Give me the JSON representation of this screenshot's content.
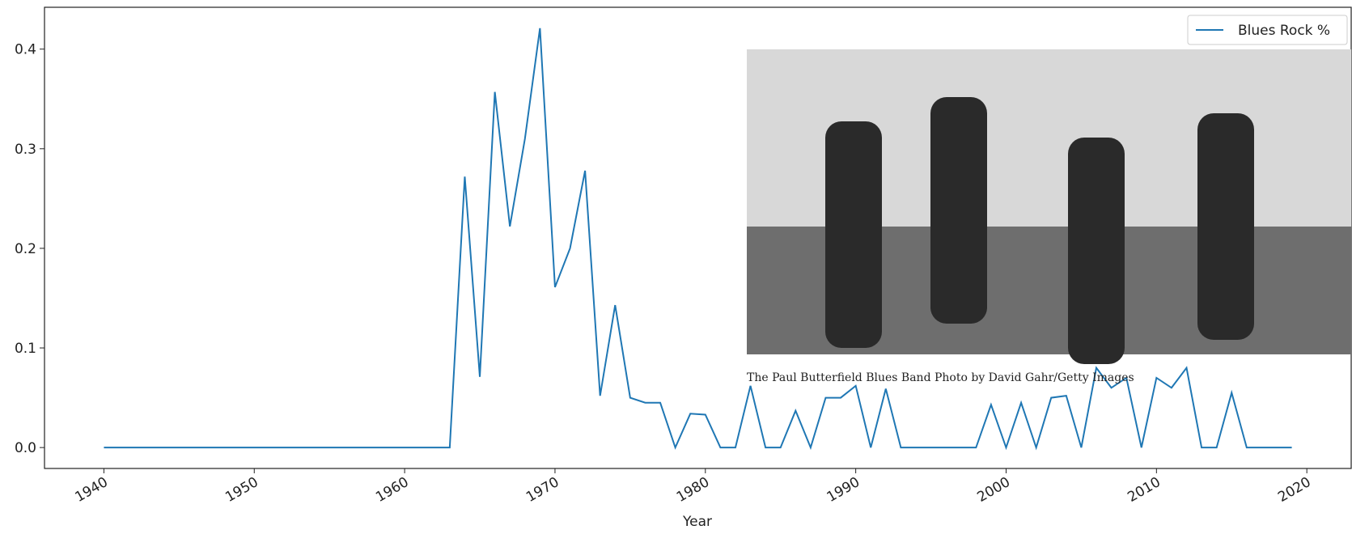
{
  "chart_data": {
    "type": "line",
    "xlabel": "Year",
    "x": [
      1940,
      1941,
      1942,
      1943,
      1944,
      1945,
      1946,
      1947,
      1948,
      1949,
      1950,
      1951,
      1952,
      1953,
      1954,
      1955,
      1956,
      1957,
      1958,
      1959,
      1960,
      1961,
      1962,
      1963,
      1964,
      1965,
      1966,
      1967,
      1968,
      1969,
      1970,
      1971,
      1972,
      1973,
      1974,
      1975,
      1976,
      1977,
      1978,
      1979,
      1980,
      1981,
      1982,
      1983,
      1984,
      1985,
      1986,
      1987,
      1988,
      1989,
      1990,
      1991,
      1992,
      1993,
      1994,
      1995,
      1996,
      1997,
      1998,
      1999,
      2000,
      2001,
      2002,
      2003,
      2004,
      2005,
      2006,
      2007,
      2008,
      2009,
      2010,
      2011,
      2012,
      2013,
      2014,
      2015,
      2016,
      2017,
      2018,
      2019
    ],
    "series": [
      {
        "name": "Blues Rock %",
        "color": "#1f77b4",
        "values": [
          0,
          0,
          0,
          0,
          0,
          0,
          0,
          0,
          0,
          0,
          0,
          0,
          0,
          0,
          0,
          0,
          0,
          0,
          0,
          0,
          0,
          0,
          0,
          0,
          0.272,
          0.071,
          0.357,
          0.222,
          0.31,
          0.421,
          0.161,
          0.2,
          0.278,
          0.052,
          0.143,
          0.05,
          0.045,
          0.045,
          0,
          0.034,
          0.033,
          0,
          0,
          0.062,
          0,
          0,
          0.037,
          0,
          0.05,
          0.05,
          0.062,
          0,
          0.059,
          0,
          0,
          0,
          0,
          0,
          0,
          0.043,
          0,
          0.045,
          0,
          0.05,
          0.052,
          0,
          0.08,
          0.06,
          0.07,
          0,
          0.07,
          0.06,
          0.08,
          0,
          0,
          0.055,
          0,
          0,
          0,
          0
        ]
      }
    ],
    "xlim": [
      1936.05,
      2022.95
    ],
    "xticks": [
      1940,
      1950,
      1960,
      1970,
      1980,
      1990,
      2000,
      2010,
      2020
    ],
    "ylim": [
      -0.021,
      0.442
    ],
    "yticks": [
      0.0,
      0.1,
      0.2,
      0.3,
      0.4
    ],
    "ytick_labels_decimals": null,
    "legend": "upper right",
    "caption": "The Paul Butterfield Blues Band Photo by David Gahr/Getty Images"
  }
}
